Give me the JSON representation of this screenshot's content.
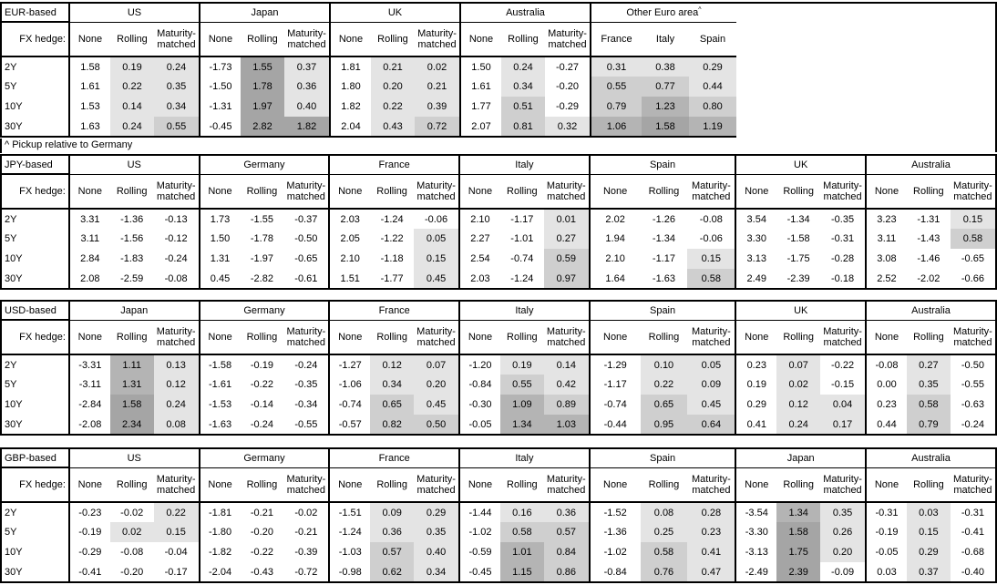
{
  "footnote": "^ Pickup relative to Germany",
  "fx_hedge_label": "FX hedge:",
  "hedge_columns": [
    "None",
    "Rolling",
    "Maturity-matched"
  ],
  "tenors": [
    "2Y",
    "5Y",
    "10Y",
    "30Y"
  ],
  "shading": {
    "rule": "hedged columns only; negative values white; darker gray = larger positive pickup",
    "bins": [
      {
        "min": 0.0,
        "max": 0.5,
        "color": "#e4e4e4"
      },
      {
        "min": 0.5,
        "max": 1.0,
        "color": "#cfcfcf"
      },
      {
        "min": 1.0,
        "max": 1.5,
        "color": "#b4b4b4"
      },
      {
        "min": 1.5,
        "max": 99.0,
        "color": "#a5a5a5"
      }
    ]
  },
  "tables": [
    {
      "base_label": "EUR-based",
      "groups": [
        {
          "country": "US",
          "values": [
            [
              1.58,
              0.19,
              0.24
            ],
            [
              1.61,
              0.22,
              0.35
            ],
            [
              1.53,
              0.14,
              0.34
            ],
            [
              1.63,
              0.24,
              0.55
            ]
          ]
        },
        {
          "country": "Japan",
          "values": [
            [
              -1.73,
              1.55,
              0.37
            ],
            [
              -1.5,
              1.78,
              0.36
            ],
            [
              -1.31,
              1.97,
              0.4
            ],
            [
              -0.45,
              2.82,
              1.82
            ]
          ]
        },
        {
          "country": "UK",
          "values": [
            [
              1.81,
              0.21,
              0.02
            ],
            [
              1.8,
              0.2,
              0.21
            ],
            [
              1.82,
              0.22,
              0.39
            ],
            [
              2.04,
              0.43,
              0.72
            ]
          ]
        },
        {
          "country": "Australia",
          "values": [
            [
              1.5,
              0.24,
              -0.27
            ],
            [
              1.61,
              0.34,
              -0.2
            ],
            [
              1.77,
              0.51,
              -0.29
            ],
            [
              2.07,
              0.81,
              0.32
            ]
          ]
        },
        {
          "country": "Other Euro area",
          "superscript": "^",
          "columns": [
            "France",
            "Italy",
            "Spain"
          ],
          "shade_all_columns": true,
          "values": [
            [
              0.31,
              0.38,
              0.29
            ],
            [
              0.55,
              0.77,
              0.44
            ],
            [
              0.79,
              1.23,
              0.8
            ],
            [
              1.06,
              1.58,
              1.19
            ]
          ]
        }
      ]
    },
    {
      "base_label": "JPY-based",
      "groups": [
        {
          "country": "US",
          "values": [
            [
              3.31,
              -1.36,
              -0.13
            ],
            [
              3.11,
              -1.56,
              -0.12
            ],
            [
              2.84,
              -1.83,
              -0.24
            ],
            [
              2.08,
              -2.59,
              -0.08
            ]
          ]
        },
        {
          "country": "Germany",
          "values": [
            [
              1.73,
              -1.55,
              -0.37
            ],
            [
              1.5,
              -1.78,
              -0.5
            ],
            [
              1.31,
              -1.97,
              -0.65
            ],
            [
              0.45,
              -2.82,
              -0.61
            ]
          ]
        },
        {
          "country": "France",
          "values": [
            [
              2.03,
              -1.24,
              -0.06
            ],
            [
              2.05,
              -1.22,
              0.05
            ],
            [
              2.1,
              -1.18,
              0.15
            ],
            [
              1.51,
              -1.77,
              0.45
            ]
          ]
        },
        {
          "country": "Italy",
          "values": [
            [
              2.1,
              -1.17,
              0.01
            ],
            [
              2.27,
              -1.01,
              0.27
            ],
            [
              2.54,
              -0.74,
              0.59
            ],
            [
              2.03,
              -1.24,
              0.97
            ]
          ]
        },
        {
          "country": "Spain",
          "values": [
            [
              2.02,
              -1.26,
              -0.08
            ],
            [
              1.94,
              -1.34,
              -0.06
            ],
            [
              2.1,
              -1.17,
              0.15
            ],
            [
              1.64,
              -1.63,
              0.58
            ]
          ]
        },
        {
          "country": "UK",
          "values": [
            [
              3.54,
              -1.34,
              -0.35
            ],
            [
              3.3,
              -1.58,
              -0.31
            ],
            [
              3.13,
              -1.75,
              -0.28
            ],
            [
              2.49,
              -2.39,
              -0.18
            ]
          ]
        },
        {
          "country": "Australia",
          "values": [
            [
              3.23,
              -1.31,
              0.15
            ],
            [
              3.11,
              -1.43,
              0.58
            ],
            [
              3.08,
              -1.46,
              -0.65
            ],
            [
              2.52,
              -2.02,
              -0.66
            ]
          ]
        }
      ]
    },
    {
      "base_label": "USD-based",
      "groups": [
        {
          "country": "Japan",
          "values": [
            [
              -3.31,
              1.11,
              0.13
            ],
            [
              -3.11,
              1.31,
              0.12
            ],
            [
              -2.84,
              1.58,
              0.24
            ],
            [
              -2.08,
              2.34,
              0.08
            ]
          ]
        },
        {
          "country": "Germany",
          "values": [
            [
              -1.58,
              -0.19,
              -0.24
            ],
            [
              -1.61,
              -0.22,
              -0.35
            ],
            [
              -1.53,
              -0.14,
              -0.34
            ],
            [
              -1.63,
              -0.24,
              -0.55
            ]
          ]
        },
        {
          "country": "France",
          "values": [
            [
              -1.27,
              0.12,
              0.07
            ],
            [
              -1.06,
              0.34,
              0.2
            ],
            [
              -0.74,
              0.65,
              0.45
            ],
            [
              -0.57,
              0.82,
              0.5
            ]
          ]
        },
        {
          "country": "Italy",
          "values": [
            [
              -1.2,
              0.19,
              0.14
            ],
            [
              -0.84,
              0.55,
              0.42
            ],
            [
              -0.3,
              1.09,
              0.89
            ],
            [
              -0.05,
              1.34,
              1.03
            ]
          ]
        },
        {
          "country": "Spain",
          "values": [
            [
              -1.29,
              0.1,
              0.05
            ],
            [
              -1.17,
              0.22,
              0.09
            ],
            [
              -0.74,
              0.65,
              0.45
            ],
            [
              -0.44,
              0.95,
              0.64
            ]
          ]
        },
        {
          "country": "UK",
          "values": [
            [
              0.23,
              0.07,
              -0.22
            ],
            [
              0.19,
              0.02,
              -0.15
            ],
            [
              0.29,
              0.12,
              0.04
            ],
            [
              0.41,
              0.24,
              0.17
            ]
          ]
        },
        {
          "country": "Australia",
          "values": [
            [
              -0.08,
              0.27,
              -0.5
            ],
            [
              0.0,
              0.35,
              -0.55
            ],
            [
              0.23,
              0.58,
              -0.63
            ],
            [
              0.44,
              0.79,
              -0.24
            ]
          ]
        }
      ]
    },
    {
      "base_label": "GBP-based",
      "groups": [
        {
          "country": "US",
          "values": [
            [
              -0.23,
              -0.02,
              0.22
            ],
            [
              -0.19,
              0.02,
              0.15
            ],
            [
              -0.29,
              -0.08,
              -0.04
            ],
            [
              -0.41,
              -0.2,
              -0.17
            ]
          ]
        },
        {
          "country": "Germany",
          "values": [
            [
              -1.81,
              -0.21,
              -0.02
            ],
            [
              -1.8,
              -0.2,
              -0.21
            ],
            [
              -1.82,
              -0.22,
              -0.39
            ],
            [
              -2.04,
              -0.43,
              -0.72
            ]
          ]
        },
        {
          "country": "France",
          "values": [
            [
              -1.51,
              0.09,
              0.29
            ],
            [
              -1.24,
              0.36,
              0.35
            ],
            [
              -1.03,
              0.57,
              0.4
            ],
            [
              -0.98,
              0.62,
              0.34
            ]
          ]
        },
        {
          "country": "Italy",
          "values": [
            [
              -1.44,
              0.16,
              0.36
            ],
            [
              -1.02,
              0.58,
              0.57
            ],
            [
              -0.59,
              1.01,
              0.84
            ],
            [
              -0.45,
              1.15,
              0.86
            ]
          ]
        },
        {
          "country": "Spain",
          "values": [
            [
              -1.52,
              0.08,
              0.28
            ],
            [
              -1.36,
              0.25,
              0.23
            ],
            [
              -1.02,
              0.58,
              0.41
            ],
            [
              -0.84,
              0.76,
              0.47
            ]
          ]
        },
        {
          "country": "Japan",
          "values": [
            [
              -3.54,
              1.34,
              0.35
            ],
            [
              -3.3,
              1.58,
              0.26
            ],
            [
              -3.13,
              1.75,
              0.2
            ],
            [
              -2.49,
              2.39,
              -0.09
            ]
          ]
        },
        {
          "country": "Australia",
          "values": [
            [
              -0.31,
              0.03,
              -0.31
            ],
            [
              -0.19,
              0.15,
              -0.41
            ],
            [
              -0.05,
              0.29,
              -0.68
            ],
            [
              0.03,
              0.37,
              -0.4
            ]
          ]
        }
      ]
    }
  ]
}
